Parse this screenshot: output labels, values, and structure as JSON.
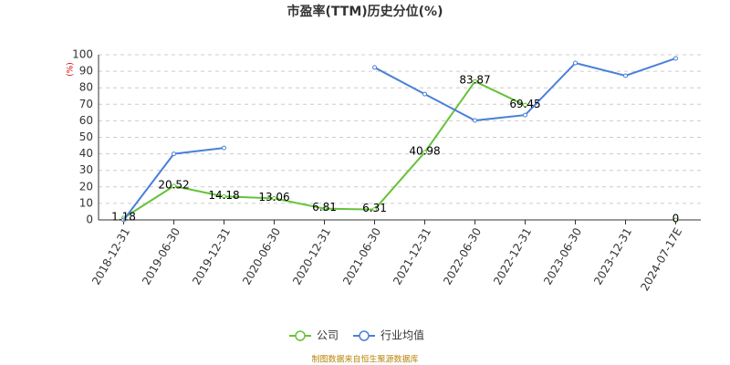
{
  "chart_data": {
    "type": "line",
    "title": "市盈率(TTM)历史分位(%)",
    "y_label": "(%)",
    "source": "制图数据来自恒生聚源数据库",
    "categories": [
      "2018-12-31",
      "2019-06-30",
      "2019-12-31",
      "2020-06-30",
      "2020-12-31",
      "2021-06-30",
      "2021-12-31",
      "2022-06-30",
      "2022-12-31",
      "2023-06-30",
      "2023-12-31",
      "2024-07-17E"
    ],
    "series": [
      {
        "name": "公司",
        "color": "#67c23a",
        "values": [
          1.18,
          20.52,
          14.18,
          13.06,
          6.81,
          6.31,
          40.98,
          83.87,
          69.45,
          null,
          null,
          0
        ],
        "labels": true
      },
      {
        "name": "行业均值",
        "color": "#4a80d8",
        "values": [
          0,
          40,
          43.6,
          null,
          null,
          92.3,
          76.2,
          60.2,
          63.5,
          95,
          87.3,
          97.8
        ],
        "labels": false
      }
    ],
    "ylim": [
      0,
      100
    ],
    "yticks": [
      0,
      10,
      20,
      30,
      40,
      50,
      60,
      70,
      80,
      90,
      100
    ],
    "grid": true,
    "legend": "bottom"
  }
}
